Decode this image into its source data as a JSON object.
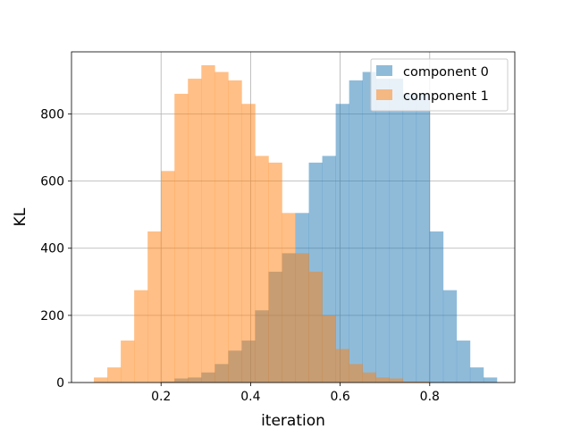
{
  "chart_data": {
    "type": "bar",
    "subtype": "overlapping-histogram",
    "title": "",
    "xlabel": "iteration",
    "ylabel": "KL",
    "xlim": [
      0.0,
      0.99
    ],
    "ylim": [
      0,
      985
    ],
    "xticks": [
      0.2,
      0.4,
      0.6,
      0.8
    ],
    "xtick_labels": [
      "0.2",
      "0.4",
      "0.6",
      "0.8"
    ],
    "yticks": [
      0,
      200,
      400,
      600,
      800
    ],
    "ytick_labels": [
      "0",
      "200",
      "400",
      "600",
      "800"
    ],
    "grid": true,
    "legend_position": "top-right",
    "bin_width": 0.03,
    "series": [
      {
        "name": "component 0",
        "color": "#1f77b4",
        "alpha": 0.5,
        "bin_starts": [
          0.2,
          0.23,
          0.26,
          0.29,
          0.32,
          0.35,
          0.38,
          0.41,
          0.44,
          0.47,
          0.5,
          0.53,
          0.56,
          0.59,
          0.62,
          0.65,
          0.68,
          0.71,
          0.74,
          0.77,
          0.8,
          0.83,
          0.86,
          0.89,
          0.92
        ],
        "values": [
          3,
          12,
          15,
          30,
          55,
          95,
          125,
          215,
          330,
          385,
          505,
          655,
          675,
          830,
          900,
          925,
          905,
          905,
          860,
          860,
          450,
          275,
          125,
          45,
          15
        ]
      },
      {
        "name": "component 1",
        "color": "#ff7f0e",
        "alpha": 0.5,
        "bin_starts": [
          0.05,
          0.08,
          0.11,
          0.14,
          0.17,
          0.2,
          0.23,
          0.26,
          0.29,
          0.32,
          0.35,
          0.38,
          0.41,
          0.44,
          0.47,
          0.5,
          0.53,
          0.56,
          0.59,
          0.62,
          0.65,
          0.68,
          0.71,
          0.74,
          0.77
        ],
        "values": [
          15,
          45,
          125,
          275,
          450,
          630,
          860,
          905,
          945,
          925,
          900,
          830,
          675,
          655,
          505,
          385,
          330,
          200,
          100,
          55,
          30,
          15,
          12,
          3,
          3
        ]
      }
    ]
  },
  "legend": {
    "items": [
      {
        "label": "component 0",
        "color": "#1f77b4"
      },
      {
        "label": "component 1",
        "color": "#ff7f0e"
      }
    ]
  }
}
